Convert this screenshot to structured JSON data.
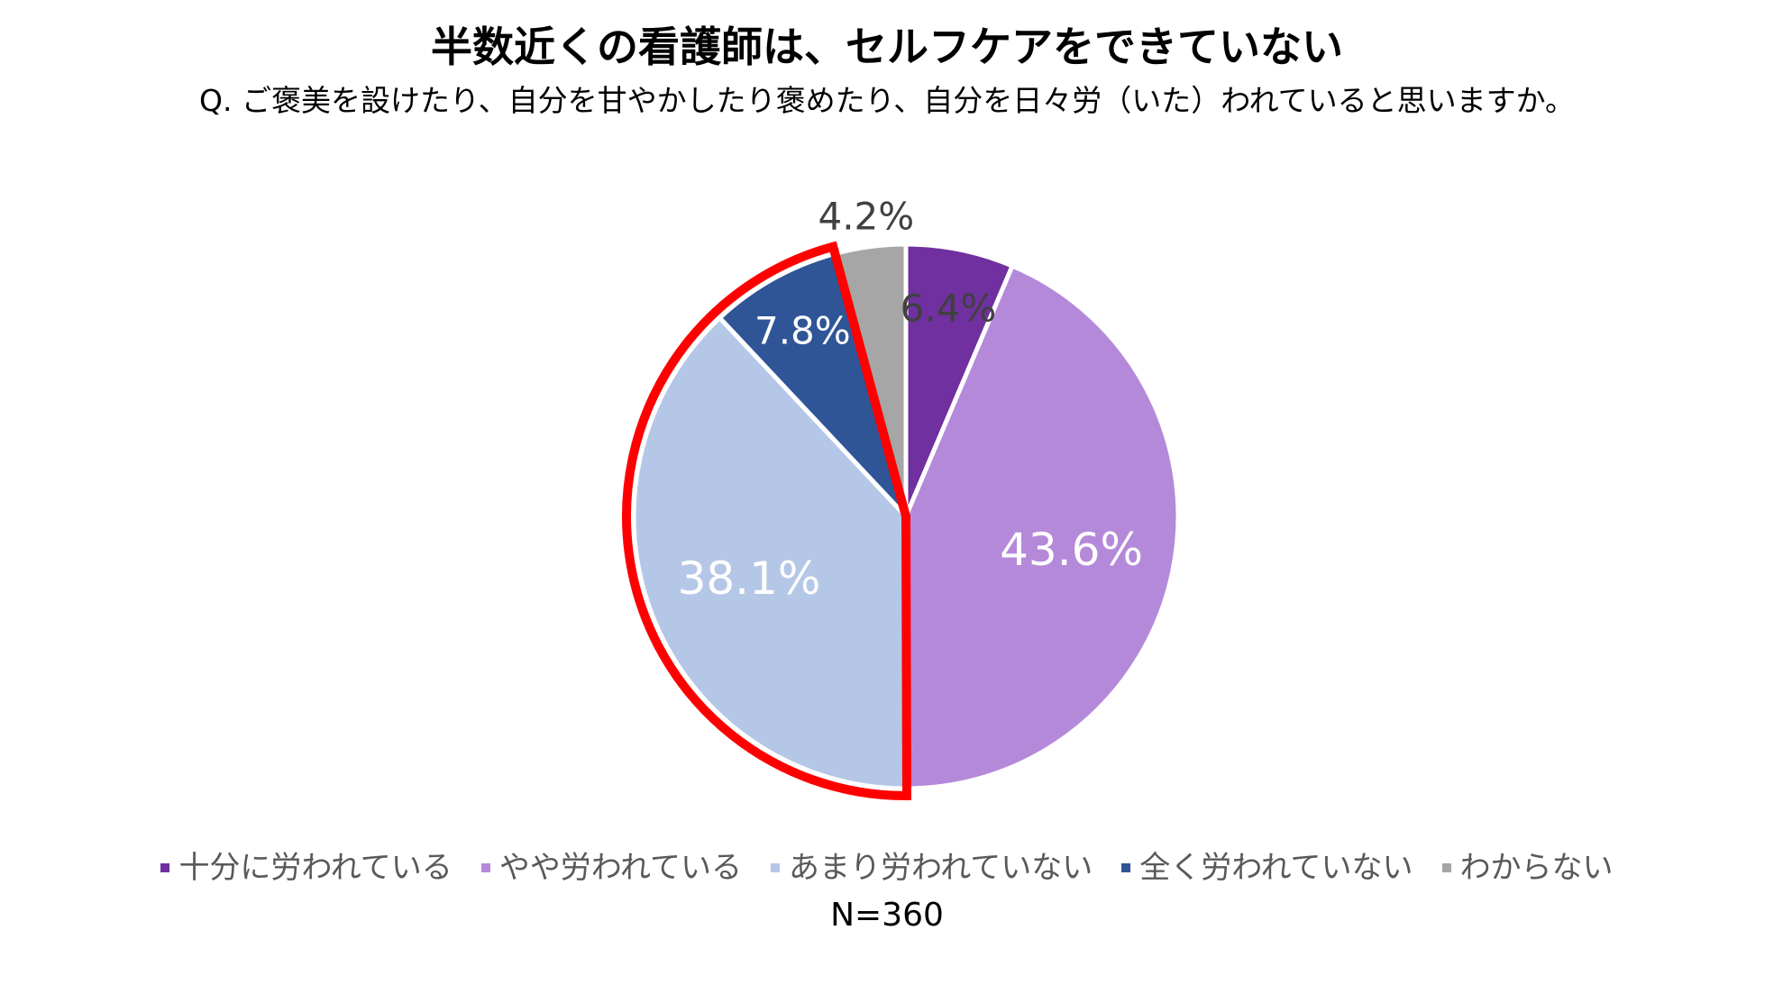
{
  "chart_data": {
    "type": "pie",
    "title": "半数近くの看護師は、セルフケアをできていない",
    "subtitle": "Q. ご褒美を設けたり、自分を甘やかしたり褒めたり、自分を日々労（いた）われていると思いますか。",
    "categories": [
      "十分に労われている",
      "やや労われている",
      "あまり労われていない",
      "全く労われていない",
      "わからない"
    ],
    "values": [
      6.4,
      43.6,
      38.1,
      7.8,
      4.2
    ],
    "data_labels": [
      "6.4%",
      "43.6%",
      "38.1%",
      "7.8%",
      "4.2%"
    ],
    "colors": [
      "#7030A0",
      "#B589DA",
      "#B4C7E7",
      "#2F5597",
      "#A6A6A6"
    ],
    "label_colors": [
      "#404040",
      "#FFFFFF",
      "#FFFFFF",
      "#FFFFFF",
      "#404040"
    ],
    "highlight": {
      "categories": [
        "あまり労われていない",
        "全く労われていない"
      ],
      "color": "#FF0000"
    },
    "legend_position": "bottom",
    "note": "N=360"
  }
}
